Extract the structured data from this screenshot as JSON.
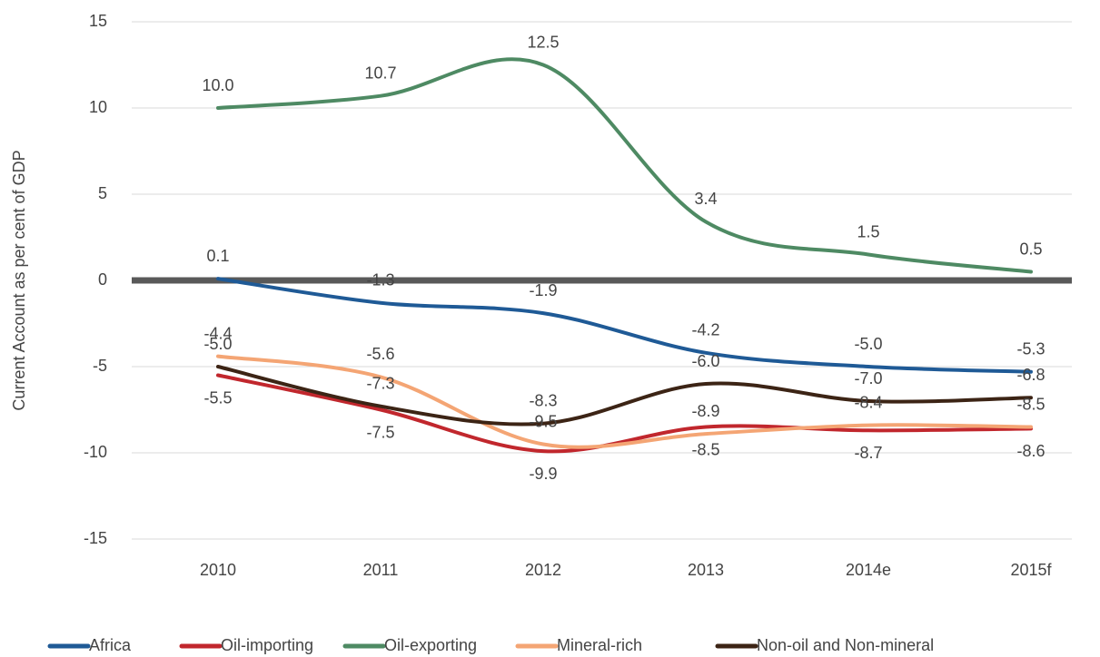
{
  "chart_data": {
    "type": "line",
    "ylabel": "Current Account as  per cent of GDP",
    "categories": [
      "2010",
      "2011",
      "2012",
      "2013",
      "2014e",
      "2015f"
    ],
    "ylim": [
      -15,
      15
    ],
    "yticks": [
      -15,
      -10,
      -5,
      0,
      5,
      10,
      15
    ],
    "grid": true,
    "legend": "bottom",
    "smooth": true,
    "series": [
      {
        "name": "Africa",
        "color": "#1f5a96",
        "values": [
          0.1,
          -1.3,
          -1.9,
          -4.2,
          -5.0,
          -5.3
        ],
        "value_labels": [
          "0.1",
          "-1.3",
          "-1.9",
          "-4.2",
          "-5.0",
          "-5.3"
        ]
      },
      {
        "name": "Oil-importing",
        "color": "#c1272d",
        "values": [
          -5.5,
          -7.5,
          -9.9,
          -8.5,
          -8.7,
          -8.6
        ],
        "value_labels": [
          "-5.5",
          "-7.5",
          "-9.9",
          "-8.5",
          "-8.7",
          "-8.6"
        ]
      },
      {
        "name": "Oil-exporting",
        "color": "#4e8a63",
        "values": [
          10.0,
          10.7,
          12.5,
          3.4,
          1.5,
          0.5
        ],
        "value_labels": [
          "10.0",
          "10.7",
          "12.5",
          "3.4",
          "1.5",
          "0.5"
        ]
      },
      {
        "name": "Mineral-rich",
        "color": "#f4a574",
        "values": [
          -4.4,
          -5.6,
          -9.5,
          -8.9,
          -8.4,
          -8.5
        ],
        "value_labels": [
          "-4.4",
          "-5.6",
          "-9.5",
          "-8.9",
          "-8.4",
          "-8.5"
        ]
      },
      {
        "name": "Non-oil and Non-mineral",
        "color": "#3c2415",
        "values": [
          -5.0,
          -7.3,
          -8.3,
          -6.0,
          -7.0,
          -6.8
        ],
        "value_labels": [
          "-5.0",
          "-7.3",
          "-8.3",
          "-6.0",
          "-7.0",
          "-6.8"
        ]
      }
    ]
  }
}
